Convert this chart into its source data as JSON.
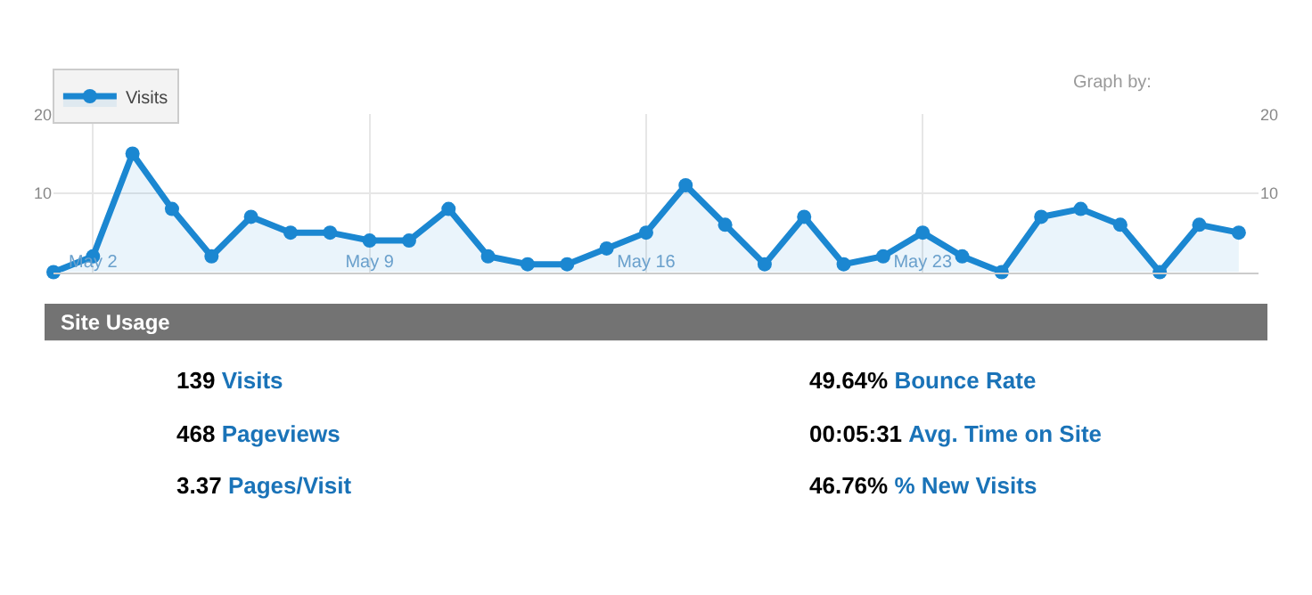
{
  "chart_data": [
    {
      "type": "area",
      "x": [
        "--05-01",
        "--05-02",
        "--05-03",
        "--05-04",
        "--05-05",
        "--05-06",
        "--05-07",
        "--05-08",
        "--05-09",
        "--05-10",
        "--05-11",
        "--05-12",
        "--05-13",
        "--05-14",
        "--05-15",
        "--05-16",
        "--05-17",
        "--05-18",
        "--05-19",
        "--05-20",
        "--05-21",
        "--05-22",
        "--05-23",
        "--05-24",
        "--05-25",
        "--05-26",
        "--05-27",
        "--05-28",
        "--05-29",
        "--05-30",
        "--05-31"
      ],
      "series": [
        {
          "name": "Visits",
          "color": "#1b87d1",
          "values": [
            0,
            2,
            15,
            8,
            2,
            7,
            5,
            5,
            4,
            4,
            8,
            2,
            1,
            1,
            3,
            5,
            11,
            6,
            1,
            7,
            1,
            2,
            5,
            2,
            0,
            7,
            8,
            6,
            0,
            6,
            5
          ]
        }
      ],
      "xlim": [
        "--05-01",
        "--05-31T12:00"
      ],
      "xticks": [
        {
          "value": "--05-02",
          "label": "May 2"
        },
        {
          "value": "--05-09",
          "label": "May 9"
        },
        {
          "value": "--05-16",
          "label": "May 16"
        },
        {
          "value": "--05-23",
          "label": "May 23"
        }
      ],
      "ylim": [
        0,
        20
      ],
      "yticks": [
        10,
        20
      ],
      "y2lim": [
        0,
        20
      ],
      "y2ticks": [
        10,
        20
      ],
      "grid": true,
      "marker": "circle",
      "line_style": "solid",
      "legend": "top left",
      "annotations": [
        "Graph by:"
      ]
    },
    {
      "type": "other",
      "title": "Site Usage",
      "annotations": [
        "139 Visits",
        "468 Pageviews",
        "3.37 Pages/Visit",
        "49.64% Bounce Rate",
        "00:05:31 Avg. Time on Site",
        "46.76% % New Visits"
      ]
    }
  ]
}
